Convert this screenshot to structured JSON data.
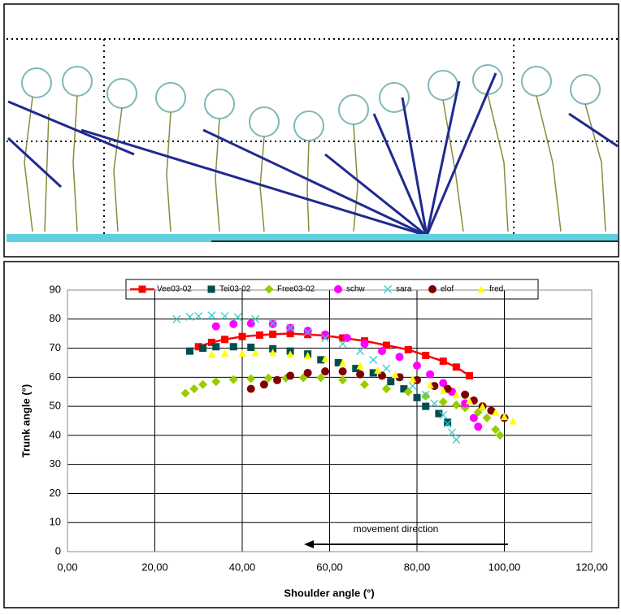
{
  "chart_data": {
    "type": "scatter",
    "xlabel": "Shoulder angle (°)",
    "ylabel": "Trunk angle (°)",
    "annotation": "movement direction",
    "xlim": [
      0,
      120
    ],
    "ylim": [
      0,
      90
    ],
    "xticks": [
      {
        "value": 0,
        "label": "0,00"
      },
      {
        "value": 20,
        "label": "20,00"
      },
      {
        "value": 40,
        "label": "40,00"
      },
      {
        "value": 60,
        "label": "60,00"
      },
      {
        "value": 80,
        "label": "80,00"
      },
      {
        "value": 100,
        "label": "100,00"
      },
      {
        "value": 120,
        "label": "120,00"
      }
    ],
    "yticks": [
      0,
      10,
      20,
      30,
      40,
      50,
      60,
      70,
      80,
      90
    ],
    "grid": true,
    "legend": "top",
    "series": [
      {
        "name": "Vee03-02",
        "color": "#ff0000",
        "marker": "square",
        "line": true,
        "x": [
          30,
          33,
          36,
          40,
          44,
          47,
          51,
          55,
          59,
          63,
          68,
          73,
          78,
          82,
          86,
          89,
          92
        ],
        "values": [
          70.5,
          72,
          73,
          74,
          74.5,
          74.8,
          75,
          74.7,
          74.3,
          73.5,
          72.5,
          71,
          69.5,
          67.5,
          65.5,
          63.5,
          60.5
        ]
      },
      {
        "name": "Tei03-02",
        "color": "#004d4d",
        "marker": "square",
        "x": [
          28,
          31,
          34,
          38,
          42,
          47,
          51,
          55,
          58,
          62,
          66,
          70,
          74,
          77,
          80,
          82,
          85,
          87
        ],
        "values": [
          69,
          70,
          70.5,
          70.5,
          70.3,
          69.8,
          69,
          68,
          66,
          65,
          63,
          61.5,
          58.5,
          56,
          53,
          50,
          47.5,
          44.5
        ]
      },
      {
        "name": "Free03-02",
        "color": "#99cc00",
        "marker": "diamond",
        "x": [
          27,
          29,
          31,
          34,
          38,
          42,
          46,
          50,
          54,
          58,
          63,
          68,
          73,
          78,
          82,
          86,
          89,
          91,
          94,
          96,
          98,
          99
        ],
        "values": [
          54.5,
          56,
          57.5,
          58.5,
          59.2,
          59.5,
          59.7,
          59.7,
          59.8,
          59.8,
          59,
          57.5,
          56,
          55,
          53.5,
          51.5,
          50.5,
          49.5,
          48,
          46,
          42,
          40
        ]
      },
      {
        "name": "schw",
        "color": "#ff00ff",
        "marker": "circle",
        "x": [
          34,
          38,
          42,
          47,
          51,
          55,
          59,
          64,
          68,
          72,
          76,
          80,
          83,
          86,
          88,
          91,
          93,
          94
        ],
        "values": [
          77.5,
          78.3,
          78.5,
          78.3,
          77,
          76,
          74.7,
          73.5,
          71.5,
          69,
          67,
          64,
          61,
          58,
          55,
          51,
          46,
          43
        ]
      },
      {
        "name": "sara",
        "color": "#33cccc",
        "marker": "x",
        "x": [
          25,
          28,
          30,
          33,
          36,
          39,
          43,
          47,
          51,
          55,
          59,
          63,
          67,
          70,
          73,
          76,
          79,
          82,
          84,
          86,
          87,
          88,
          89
        ],
        "values": [
          80,
          80.8,
          81,
          81.3,
          81,
          80.7,
          80,
          78.5,
          77,
          75.5,
          73.5,
          71.5,
          69,
          66,
          63,
          60,
          57,
          54,
          51,
          47,
          44,
          41,
          38.5
        ]
      },
      {
        "name": "elof",
        "color": "#800000",
        "marker": "circle",
        "x": [
          42,
          45,
          48,
          51,
          55,
          59,
          63,
          67,
          72,
          76,
          80,
          84,
          87,
          91,
          93,
          95,
          97,
          100
        ],
        "values": [
          56,
          57.5,
          59,
          60.5,
          61.5,
          62,
          62,
          61,
          60.5,
          60,
          59,
          57,
          56,
          54,
          52,
          50,
          48.5,
          46
        ]
      },
      {
        "name": "fred",
        "color": "#ffff00",
        "marker": "triangle",
        "x": [
          33,
          36,
          40,
          43,
          47,
          51,
          55,
          59,
          63,
          67,
          71,
          75,
          79,
          83,
          86,
          89,
          92,
          95,
          98,
          100,
          102
        ],
        "values": [
          68,
          68.3,
          68.3,
          68.5,
          68.5,
          68,
          67.5,
          66.5,
          65,
          64,
          62.5,
          61,
          59.5,
          57.5,
          55.5,
          54,
          52,
          50,
          48,
          46.5,
          45
        ]
      }
    ]
  }
}
